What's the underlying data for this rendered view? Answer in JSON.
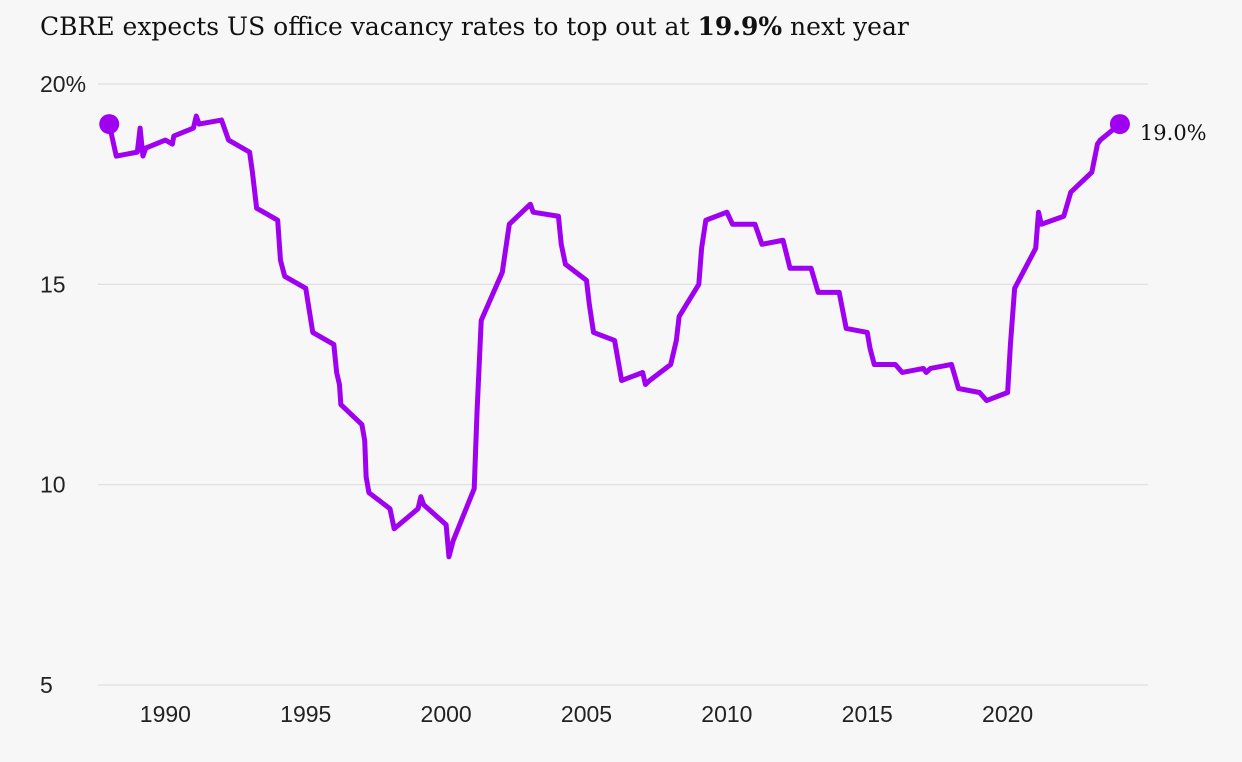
{
  "title": {
    "prefix": "CBRE expects US office vacancy rates to top out at ",
    "highlight": "19.9%",
    "suffix": " next year"
  },
  "colors": {
    "line": "#a000f0",
    "grid": "#dedede",
    "background": "#f7f7f7"
  },
  "chart_data": {
    "type": "line",
    "title": "CBRE expects US office vacancy rates to top out at 19.9% next year",
    "xlabel": "",
    "ylabel": "",
    "xlim": [
      1987.6,
      2025.0
    ],
    "ylim": [
      5,
      20
    ],
    "yticks": [
      5,
      10,
      15,
      20
    ],
    "ytick_labels": [
      "5",
      "10",
      "15",
      "20%"
    ],
    "xticks": [
      1990,
      1995,
      2000,
      2005,
      2010,
      2015,
      2020
    ],
    "xtick_labels": [
      "1990",
      "1995",
      "2000",
      "2005",
      "2010",
      "2015",
      "2020"
    ],
    "grid": "horizontal",
    "legend": "none",
    "end_label": "19.0%",
    "series": [
      {
        "points": [
          [
            1988.0,
            19.0
          ],
          [
            1988.25,
            18.2
          ],
          [
            1989.0,
            18.3
          ],
          [
            1989.1,
            18.9
          ],
          [
            1989.2,
            18.2
          ],
          [
            1989.3,
            18.4
          ],
          [
            1990.0,
            18.6
          ],
          [
            1990.25,
            18.5
          ],
          [
            1990.3,
            18.7
          ],
          [
            1991.0,
            18.9
          ],
          [
            1991.1,
            19.2
          ],
          [
            1991.2,
            19.0
          ],
          [
            1992.0,
            19.1
          ],
          [
            1992.25,
            18.6
          ],
          [
            1993.0,
            18.3
          ],
          [
            1993.1,
            17.8
          ],
          [
            1993.25,
            16.9
          ],
          [
            1994.0,
            16.6
          ],
          [
            1994.1,
            15.6
          ],
          [
            1994.25,
            15.2
          ],
          [
            1995.0,
            14.9
          ],
          [
            1995.25,
            13.8
          ],
          [
            1996.0,
            13.5
          ],
          [
            1996.1,
            12.8
          ],
          [
            1996.2,
            12.5
          ],
          [
            1996.25,
            12.0
          ],
          [
            1997.0,
            11.5
          ],
          [
            1997.1,
            11.1
          ],
          [
            1997.15,
            10.2
          ],
          [
            1997.25,
            9.8
          ],
          [
            1998.0,
            9.4
          ],
          [
            1998.15,
            8.9
          ],
          [
            1999.0,
            9.4
          ],
          [
            1999.1,
            9.7
          ],
          [
            1999.2,
            9.5
          ],
          [
            2000.0,
            9.0
          ],
          [
            2000.1,
            8.2
          ],
          [
            2000.25,
            8.6
          ],
          [
            2001.0,
            9.9
          ],
          [
            2001.1,
            11.8
          ],
          [
            2001.25,
            14.1
          ],
          [
            2002.0,
            15.3
          ],
          [
            2002.25,
            16.5
          ],
          [
            2003.0,
            17.0
          ],
          [
            2003.1,
            16.8
          ],
          [
            2004.0,
            16.7
          ],
          [
            2004.1,
            16.0
          ],
          [
            2004.25,
            15.5
          ],
          [
            2005.0,
            15.1
          ],
          [
            2005.1,
            14.5
          ],
          [
            2005.25,
            13.8
          ],
          [
            2006.0,
            13.6
          ],
          [
            2006.25,
            12.6
          ],
          [
            2007.0,
            12.8
          ],
          [
            2007.1,
            12.5
          ],
          [
            2007.25,
            12.6
          ],
          [
            2008.0,
            13.0
          ],
          [
            2008.2,
            13.6
          ],
          [
            2008.3,
            14.2
          ],
          [
            2009.0,
            15.0
          ],
          [
            2009.1,
            15.9
          ],
          [
            2009.25,
            16.6
          ],
          [
            2010.0,
            16.8
          ],
          [
            2010.2,
            16.5
          ],
          [
            2011.0,
            16.5
          ],
          [
            2011.25,
            16.0
          ],
          [
            2012.0,
            16.1
          ],
          [
            2012.25,
            15.4
          ],
          [
            2013.0,
            15.4
          ],
          [
            2013.25,
            14.8
          ],
          [
            2014.0,
            14.8
          ],
          [
            2014.25,
            13.9
          ],
          [
            2015.0,
            13.8
          ],
          [
            2015.1,
            13.4
          ],
          [
            2015.25,
            13.0
          ],
          [
            2016.0,
            13.0
          ],
          [
            2016.25,
            12.8
          ],
          [
            2017.0,
            12.9
          ],
          [
            2017.1,
            12.8
          ],
          [
            2017.25,
            12.9
          ],
          [
            2018.0,
            13.0
          ],
          [
            2018.25,
            12.4
          ],
          [
            2019.0,
            12.3
          ],
          [
            2019.25,
            12.1
          ],
          [
            2020.0,
            12.3
          ],
          [
            2020.1,
            13.5
          ],
          [
            2020.25,
            14.9
          ],
          [
            2021.0,
            15.9
          ],
          [
            2021.1,
            16.8
          ],
          [
            2021.2,
            16.5
          ],
          [
            2022.0,
            16.7
          ],
          [
            2022.25,
            17.3
          ],
          [
            2023.0,
            17.8
          ],
          [
            2023.2,
            18.5
          ],
          [
            2023.3,
            18.6
          ],
          [
            2024.0,
            19.0
          ]
        ]
      }
    ]
  }
}
